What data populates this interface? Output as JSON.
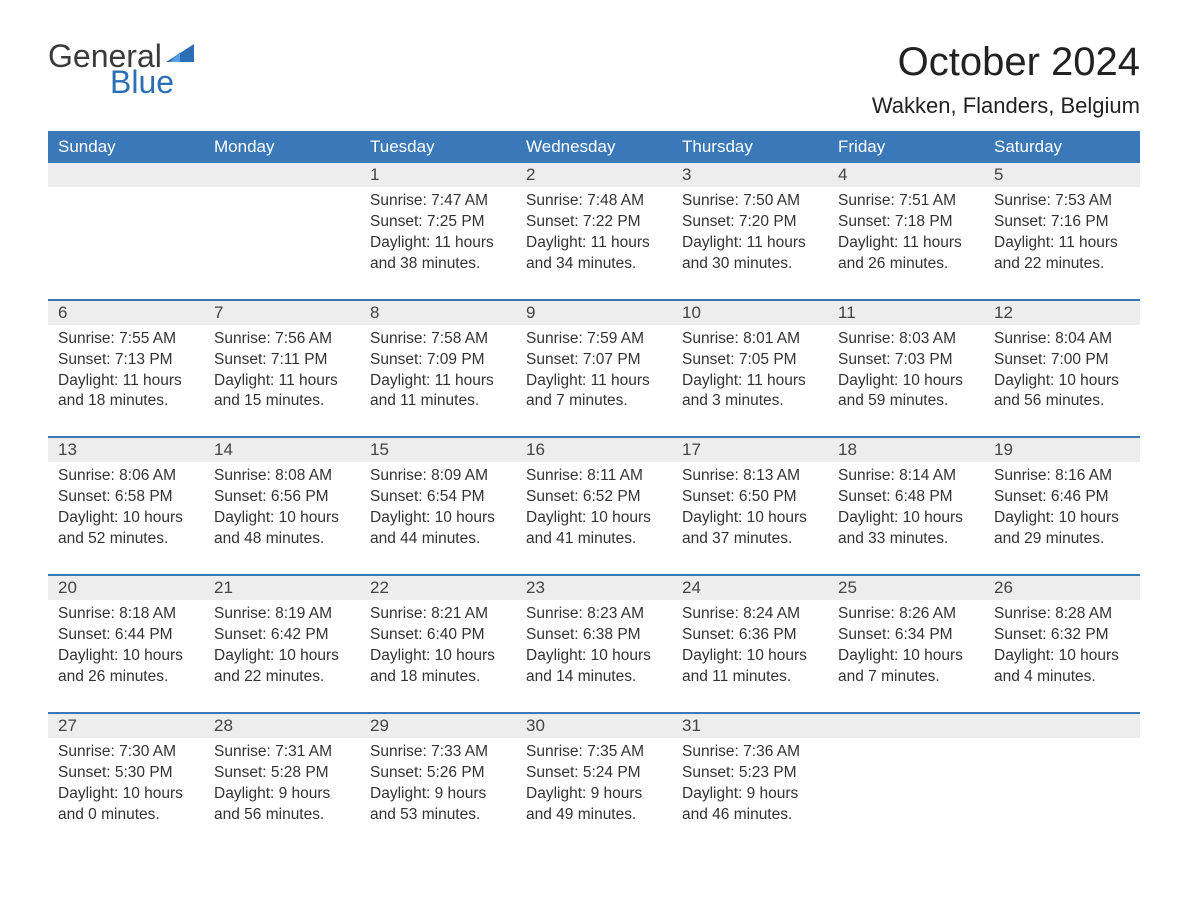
{
  "logo": {
    "text_general": "General",
    "text_blue": "Blue",
    "brand_color": "#2d6fb5"
  },
  "title": "October 2024",
  "location": "Wakken, Flanders, Belgium",
  "colors": {
    "header_bg": "#3a78b8",
    "header_text": "#ffffff",
    "daynum_bg": "#ededed",
    "week_border": "#3a78b8",
    "body_text": "#333333",
    "page_bg": "#ffffff"
  },
  "fonts": {
    "title_size": 40,
    "location_size": 22,
    "weekday_size": 17,
    "daynum_size": 17,
    "body_size": 15.5
  },
  "weekdays": [
    "Sunday",
    "Monday",
    "Tuesday",
    "Wednesday",
    "Thursday",
    "Friday",
    "Saturday"
  ],
  "labels": {
    "sunrise": "Sunrise",
    "sunset": "Sunset",
    "daylight": "Daylight"
  },
  "weeks": [
    [
      {
        "day": null
      },
      {
        "day": null
      },
      {
        "day": 1,
        "sunrise": "7:47 AM",
        "sunset": "7:25 PM",
        "daylight": "11 hours and 38 minutes."
      },
      {
        "day": 2,
        "sunrise": "7:48 AM",
        "sunset": "7:22 PM",
        "daylight": "11 hours and 34 minutes."
      },
      {
        "day": 3,
        "sunrise": "7:50 AM",
        "sunset": "7:20 PM",
        "daylight": "11 hours and 30 minutes."
      },
      {
        "day": 4,
        "sunrise": "7:51 AM",
        "sunset": "7:18 PM",
        "daylight": "11 hours and 26 minutes."
      },
      {
        "day": 5,
        "sunrise": "7:53 AM",
        "sunset": "7:16 PM",
        "daylight": "11 hours and 22 minutes."
      }
    ],
    [
      {
        "day": 6,
        "sunrise": "7:55 AM",
        "sunset": "7:13 PM",
        "daylight": "11 hours and 18 minutes."
      },
      {
        "day": 7,
        "sunrise": "7:56 AM",
        "sunset": "7:11 PM",
        "daylight": "11 hours and 15 minutes."
      },
      {
        "day": 8,
        "sunrise": "7:58 AM",
        "sunset": "7:09 PM",
        "daylight": "11 hours and 11 minutes."
      },
      {
        "day": 9,
        "sunrise": "7:59 AM",
        "sunset": "7:07 PM",
        "daylight": "11 hours and 7 minutes."
      },
      {
        "day": 10,
        "sunrise": "8:01 AM",
        "sunset": "7:05 PM",
        "daylight": "11 hours and 3 minutes."
      },
      {
        "day": 11,
        "sunrise": "8:03 AM",
        "sunset": "7:03 PM",
        "daylight": "10 hours and 59 minutes."
      },
      {
        "day": 12,
        "sunrise": "8:04 AM",
        "sunset": "7:00 PM",
        "daylight": "10 hours and 56 minutes."
      }
    ],
    [
      {
        "day": 13,
        "sunrise": "8:06 AM",
        "sunset": "6:58 PM",
        "daylight": "10 hours and 52 minutes."
      },
      {
        "day": 14,
        "sunrise": "8:08 AM",
        "sunset": "6:56 PM",
        "daylight": "10 hours and 48 minutes."
      },
      {
        "day": 15,
        "sunrise": "8:09 AM",
        "sunset": "6:54 PM",
        "daylight": "10 hours and 44 minutes."
      },
      {
        "day": 16,
        "sunrise": "8:11 AM",
        "sunset": "6:52 PM",
        "daylight": "10 hours and 41 minutes."
      },
      {
        "day": 17,
        "sunrise": "8:13 AM",
        "sunset": "6:50 PM",
        "daylight": "10 hours and 37 minutes."
      },
      {
        "day": 18,
        "sunrise": "8:14 AM",
        "sunset": "6:48 PM",
        "daylight": "10 hours and 33 minutes."
      },
      {
        "day": 19,
        "sunrise": "8:16 AM",
        "sunset": "6:46 PM",
        "daylight": "10 hours and 29 minutes."
      }
    ],
    [
      {
        "day": 20,
        "sunrise": "8:18 AM",
        "sunset": "6:44 PM",
        "daylight": "10 hours and 26 minutes."
      },
      {
        "day": 21,
        "sunrise": "8:19 AM",
        "sunset": "6:42 PM",
        "daylight": "10 hours and 22 minutes."
      },
      {
        "day": 22,
        "sunrise": "8:21 AM",
        "sunset": "6:40 PM",
        "daylight": "10 hours and 18 minutes."
      },
      {
        "day": 23,
        "sunrise": "8:23 AM",
        "sunset": "6:38 PM",
        "daylight": "10 hours and 14 minutes."
      },
      {
        "day": 24,
        "sunrise": "8:24 AM",
        "sunset": "6:36 PM",
        "daylight": "10 hours and 11 minutes."
      },
      {
        "day": 25,
        "sunrise": "8:26 AM",
        "sunset": "6:34 PM",
        "daylight": "10 hours and 7 minutes."
      },
      {
        "day": 26,
        "sunrise": "8:28 AM",
        "sunset": "6:32 PM",
        "daylight": "10 hours and 4 minutes."
      }
    ],
    [
      {
        "day": 27,
        "sunrise": "7:30 AM",
        "sunset": "5:30 PM",
        "daylight": "10 hours and 0 minutes."
      },
      {
        "day": 28,
        "sunrise": "7:31 AM",
        "sunset": "5:28 PM",
        "daylight": "9 hours and 56 minutes."
      },
      {
        "day": 29,
        "sunrise": "7:33 AM",
        "sunset": "5:26 PM",
        "daylight": "9 hours and 53 minutes."
      },
      {
        "day": 30,
        "sunrise": "7:35 AM",
        "sunset": "5:24 PM",
        "daylight": "9 hours and 49 minutes."
      },
      {
        "day": 31,
        "sunrise": "7:36 AM",
        "sunset": "5:23 PM",
        "daylight": "9 hours and 46 minutes."
      },
      {
        "day": null
      },
      {
        "day": null
      }
    ]
  ]
}
